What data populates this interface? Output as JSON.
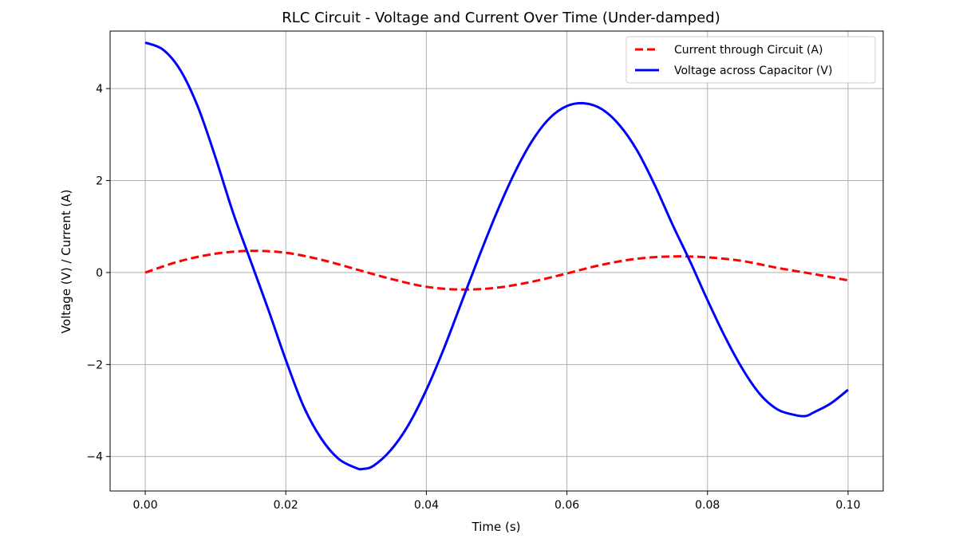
{
  "chart_data": {
    "type": "line",
    "title": "RLC Circuit - Voltage and Current Over Time (Under-damped)",
    "xlabel": "Time (s)",
    "ylabel": "Voltage (V) / Current (A)",
    "xlim": [
      -0.005,
      0.105
    ],
    "ylim": [
      -4.75,
      5.25
    ],
    "grid": true,
    "legend_position": "top-right",
    "xticks": [
      0.0,
      0.02,
      0.04,
      0.06,
      0.08,
      0.1
    ],
    "xtick_labels": [
      "0.00",
      "0.02",
      "0.04",
      "0.06",
      "0.08",
      "0.10"
    ],
    "yticks": [
      -4,
      -2,
      0,
      2,
      4
    ],
    "ytick_labels": [
      "−4",
      "−2",
      "0",
      "2",
      "4"
    ],
    "series": [
      {
        "name": "Current through Circuit (A)",
        "color": "#ff0000",
        "style": "dashed",
        "x": [
          0.0,
          0.005,
          0.01,
          0.015,
          0.02,
          0.025,
          0.03,
          0.035,
          0.04,
          0.045,
          0.05,
          0.055,
          0.06,
          0.065,
          0.07,
          0.075,
          0.08,
          0.085,
          0.09,
          0.095,
          0.1
        ],
        "y": [
          0.0,
          0.25,
          0.41,
          0.47,
          0.43,
          0.28,
          0.07,
          -0.14,
          -0.31,
          -0.37,
          -0.33,
          -0.2,
          -0.02,
          0.17,
          0.3,
          0.35,
          0.33,
          0.25,
          0.1,
          -0.03,
          -0.17
        ]
      },
      {
        "name": "Voltage across Capacitor (V)",
        "color": "#0000ff",
        "style": "solid",
        "x": [
          0.0,
          0.0025,
          0.005,
          0.0075,
          0.01,
          0.0125,
          0.015,
          0.0175,
          0.02,
          0.0225,
          0.025,
          0.0275,
          0.03,
          0.031,
          0.0325,
          0.035,
          0.0375,
          0.04,
          0.0425,
          0.045,
          0.0475,
          0.05,
          0.0525,
          0.055,
          0.0575,
          0.06,
          0.0625,
          0.065,
          0.0675,
          0.07,
          0.0725,
          0.075,
          0.0775,
          0.08,
          0.0825,
          0.085,
          0.0875,
          0.09,
          0.0925,
          0.094,
          0.095,
          0.0975,
          0.1
        ],
        "y": [
          5.0,
          4.85,
          4.4,
          3.6,
          2.5,
          1.3,
          0.25,
          -0.8,
          -1.9,
          -2.9,
          -3.6,
          -4.05,
          -4.25,
          -4.27,
          -4.2,
          -3.85,
          -3.3,
          -2.55,
          -1.65,
          -0.65,
          0.35,
          1.3,
          2.15,
          2.85,
          3.35,
          3.62,
          3.68,
          3.55,
          3.2,
          2.65,
          1.9,
          1.05,
          0.25,
          -0.6,
          -1.4,
          -2.1,
          -2.65,
          -2.98,
          -3.1,
          -3.12,
          -3.05,
          -2.85,
          -2.55
        ]
      }
    ]
  }
}
